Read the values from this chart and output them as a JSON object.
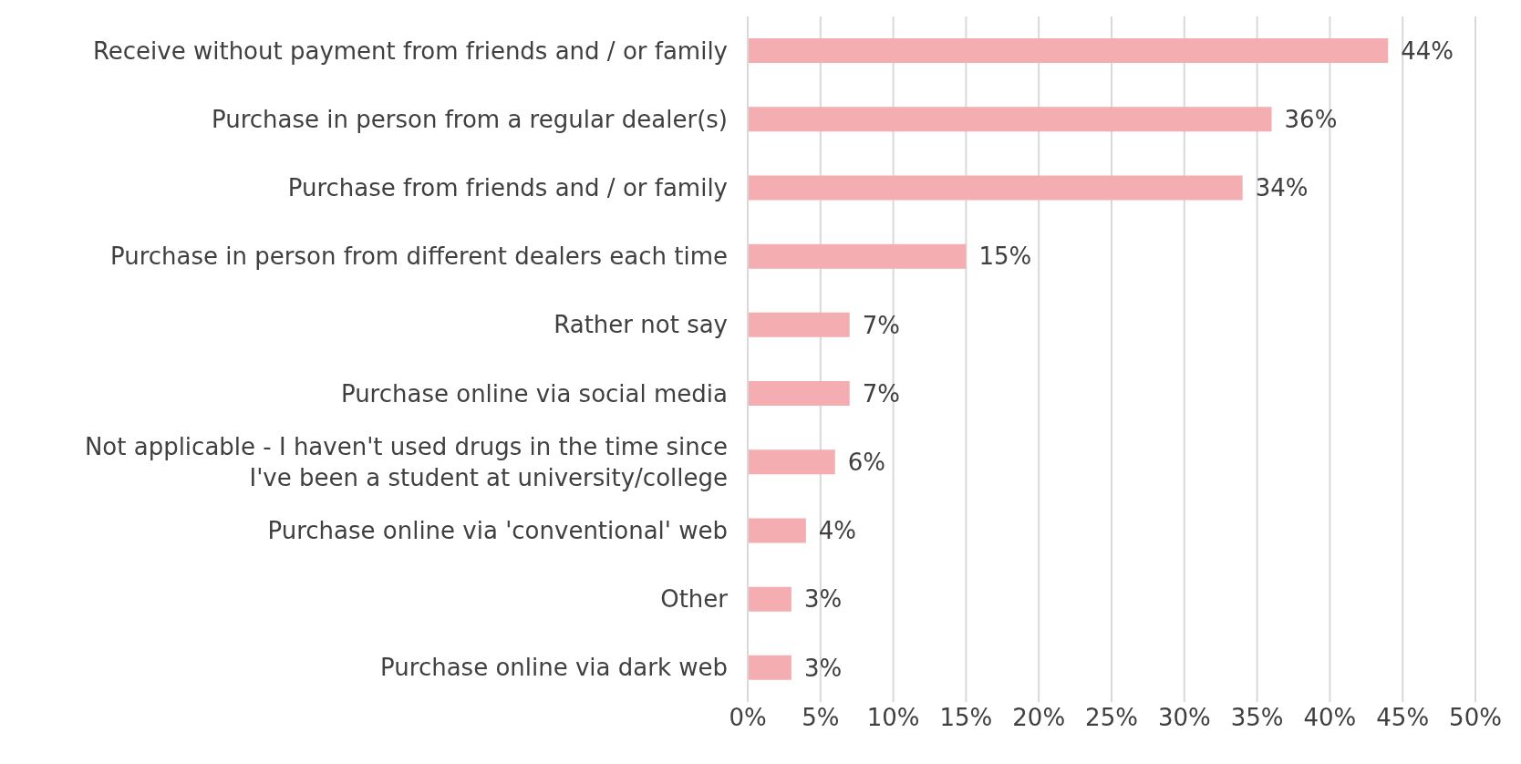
{
  "chart_data": {
    "type": "bar",
    "orientation": "horizontal",
    "categories": [
      "Receive without payment from friends and / or family",
      "Purchase in person from a regular dealer(s)",
      "Purchase from friends and / or family",
      "Purchase in person from different dealers each time",
      "Rather not say",
      "Purchase online via social media",
      "Not applicable - I haven't used drugs in the time since I've been a student at university/college",
      "Purchase online via 'conventional' web",
      "Other",
      "Purchase online via dark web"
    ],
    "values": [
      44,
      36,
      34,
      15,
      7,
      7,
      6,
      4,
      3,
      3
    ],
    "value_labels": [
      "44%",
      "36%",
      "34%",
      "15%",
      "7%",
      "7%",
      "6%",
      "4%",
      "3%",
      "3%"
    ],
    "color": "#f4aeb1",
    "xlim": [
      0,
      50
    ],
    "xticks": [
      {
        "value": 0,
        "label": "0%"
      },
      {
        "value": 5,
        "label": "5%"
      },
      {
        "value": 10,
        "label": "10%"
      },
      {
        "value": 15,
        "label": "15%"
      },
      {
        "value": 20,
        "label": "20%"
      },
      {
        "value": 25,
        "label": "25%"
      },
      {
        "value": 30,
        "label": "30%"
      },
      {
        "value": 35,
        "label": "35%"
      },
      {
        "value": 40,
        "label": "40%"
      },
      {
        "value": 45,
        "label": "45%"
      },
      {
        "value": 50,
        "label": "50%"
      }
    ],
    "grid": "x"
  }
}
